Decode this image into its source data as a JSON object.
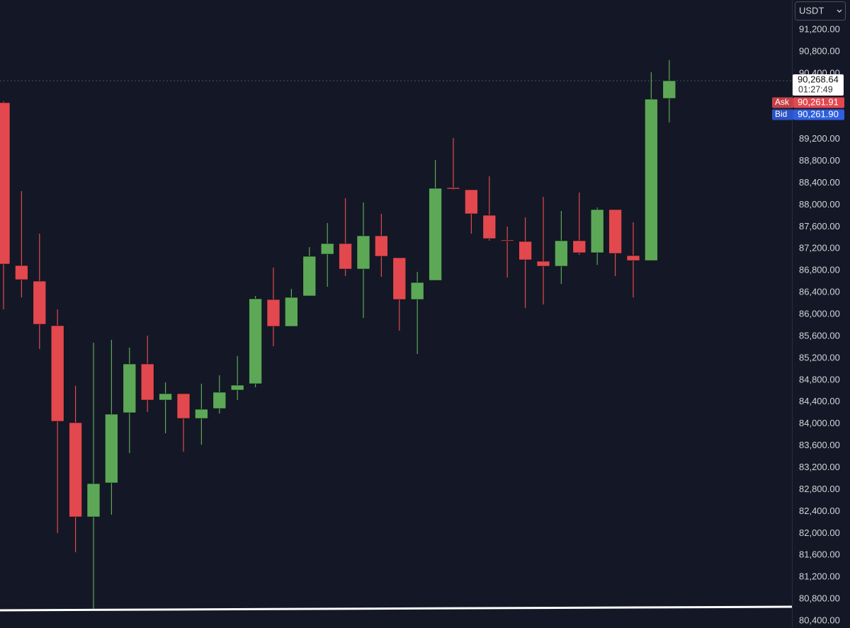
{
  "chart_data": {
    "type": "candlestick",
    "currency": "USDT",
    "up_color": "#5ca857",
    "down_color": "#e2484e",
    "open": [
      89868,
      86893,
      86608,
      85794,
      84022,
      82301,
      82922,
      84203,
      85095,
      84435,
      84552,
      84099,
      84280,
      84617,
      84733,
      86272,
      85781,
      86337,
      87100,
      87294,
      86828,
      87436,
      87035,
      86272,
      86621,
      88316,
      88277,
      87811,
      87359,
      87333,
      86971,
      86880,
      87346,
      87126,
      87915,
      87074,
      86983,
      89945
    ],
    "high": [
      89894,
      88251,
      87475,
      86091,
      84694,
      85483,
      85535,
      85393,
      85612,
      84759,
      84552,
      84733,
      84888,
      85237,
      86337,
      86854,
      86466,
      87229,
      87669,
      88122,
      88044,
      87837,
      87035,
      86777,
      88820,
      89221,
      88277,
      88523,
      87604,
      87772,
      88148,
      87889,
      88225,
      87954,
      87915,
      87682,
      90424,
      90644
    ],
    "low": [
      86091,
      86311,
      85367,
      82004,
      81655,
      80620,
      82340,
      83465,
      84216,
      83828,
      83491,
      83620,
      84190,
      84435,
      84668,
      85418,
      85781,
      86337,
      86505,
      86699,
      85936,
      86686,
      85703,
      85276,
      86621,
      88277,
      87475,
      87346,
      86673,
      86117,
      86182,
      86557,
      87087,
      86906,
      86699,
      86311,
      86983,
      89506
    ],
    "close": [
      86919,
      86634,
      85819,
      84047,
      82301,
      82909,
      84177,
      85095,
      84435,
      84552,
      84099,
      84267,
      84578,
      84707,
      86285,
      85781,
      86311,
      87061,
      87294,
      86828,
      87436,
      87061,
      86272,
      86583,
      88303,
      88290,
      87837,
      87384,
      87346,
      86996,
      86880,
      87346,
      87126,
      87915,
      87113,
      86983,
      89932,
      90268.64
    ],
    "ylim": [
      80271,
      91743
    ],
    "yticks": [
      {
        "value": 91200,
        "label": "91,200.00"
      },
      {
        "value": 90800,
        "label": "90,800.00"
      },
      {
        "value": 90400,
        "label": "90,400.00"
      },
      {
        "value": 89200,
        "label": "89,200.00"
      },
      {
        "value": 88800,
        "label": "88,800.00"
      },
      {
        "value": 88400,
        "label": "88,400.00"
      },
      {
        "value": 88000,
        "label": "88,000.00"
      },
      {
        "value": 87600,
        "label": "87,600.00"
      },
      {
        "value": 87200,
        "label": "87,200.00"
      },
      {
        "value": 86800,
        "label": "86,800.00"
      },
      {
        "value": 86400,
        "label": "86,400.00"
      },
      {
        "value": 86000,
        "label": "86,000.00"
      },
      {
        "value": 85600,
        "label": "85,600.00"
      },
      {
        "value": 85200,
        "label": "85,200.00"
      },
      {
        "value": 84800,
        "label": "84,800.00"
      },
      {
        "value": 84400,
        "label": "84,400.00"
      },
      {
        "value": 84000,
        "label": "84,000.00"
      },
      {
        "value": 83600,
        "label": "83,600.00"
      },
      {
        "value": 83200,
        "label": "83,200.00"
      },
      {
        "value": 82800,
        "label": "82,800.00"
      },
      {
        "value": 82400,
        "label": "82,400.00"
      },
      {
        "value": 82000,
        "label": "82,000.00"
      },
      {
        "value": 81600,
        "label": "81,600.00"
      },
      {
        "value": 81200,
        "label": "81,200.00"
      },
      {
        "value": 80800,
        "label": "80,800.00"
      },
      {
        "value": 80400,
        "label": "80,400.00"
      }
    ],
    "last_price": {
      "value": 90268.64,
      "label": "90,268.64"
    },
    "countdown": "01:27:49",
    "quotes": [
      {
        "name": "Ask",
        "value": 90261.91,
        "label": "90,261.91",
        "color": "#e2484e"
      },
      {
        "name": "Bid",
        "value": 90261.9,
        "label": "90,261.90",
        "color": "#2f5fe0"
      }
    ]
  }
}
